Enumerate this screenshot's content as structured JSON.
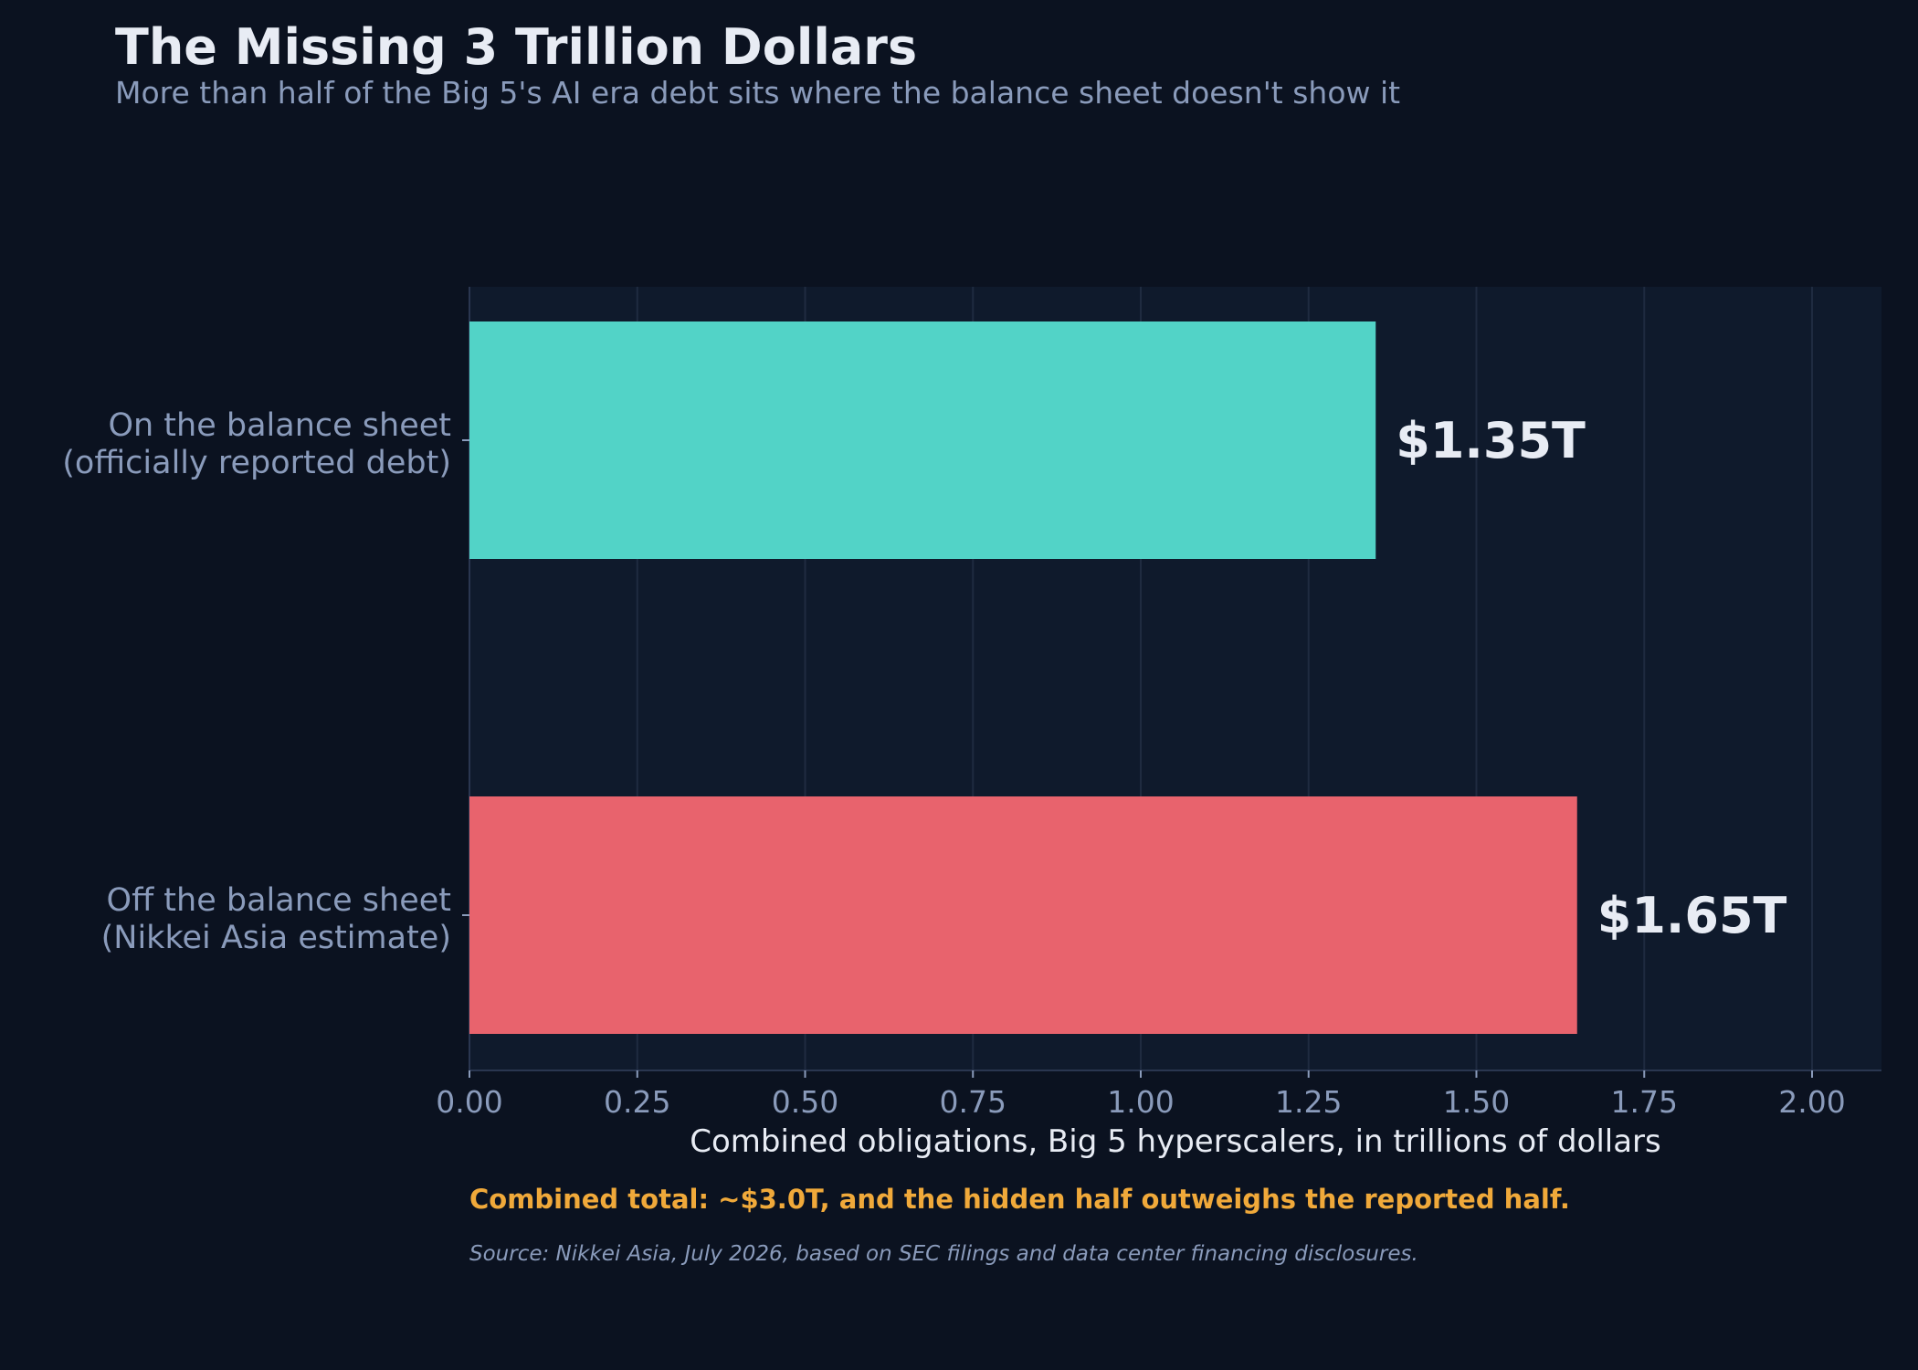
{
  "title": "The Missing 3 Trillion Dollars",
  "subtitle": "More than half of the Big 5's AI era debt sits where the balance sheet doesn't show it",
  "callout": "Combined total: ~$3.0T, and the hidden half outweighs the reported half.",
  "source": "Source: Nikkei Asia, July 2026, based on SEC filings and data center financing disclosures.",
  "colors": {
    "background": "#0b1220",
    "plot_background": "#0f1a2c",
    "on_balance": "#52d3c7",
    "off_balance": "#e8636d",
    "callout": "#f0a93a"
  },
  "chart_data": {
    "type": "bar",
    "orientation": "horizontal",
    "categories": [
      [
        "On the balance sheet",
        "(officially reported debt)"
      ],
      [
        "Off the balance sheet",
        "(Nikkei Asia estimate)"
      ]
    ],
    "values": [
      1.35,
      1.65
    ],
    "value_labels": [
      "$1.35T",
      "$1.65T"
    ],
    "xlabel": "Combined obligations, Big 5 hyperscalers, in trillions of dollars",
    "xlim": [
      0,
      2.1
    ],
    "xticks": [
      "0.00",
      "0.25",
      "0.50",
      "0.75",
      "1.00",
      "1.25",
      "1.50",
      "1.75",
      "2.00"
    ],
    "grid": true
  }
}
